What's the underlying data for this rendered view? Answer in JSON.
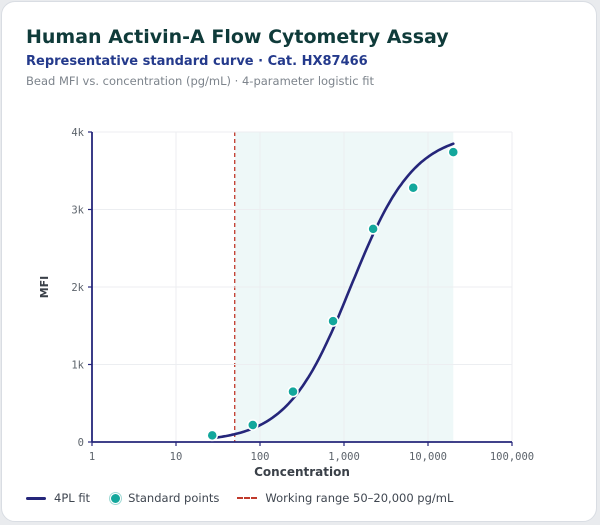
{
  "header": {
    "title": "Human Activin-A Flow Cytometry Assay",
    "subtitle": "Representative standard curve · Cat. HX87466",
    "description": "Bead MFI vs. concentration (pg/mL) · 4-parameter logistic fit"
  },
  "colors": {
    "curve": "#25267a",
    "points": "#13a79c",
    "working_range_line": "#c0392b",
    "working_range_fill": "#eef8f8",
    "axis": "#25267a",
    "grid": "#eceef1"
  },
  "chart_data": {
    "type": "scatter",
    "title": "Human Activin-A Flow Cytometry Assay",
    "subtitle": "Representative standard curve · Cat. HX87466",
    "xlabel": "Concentration",
    "ylabel": "MFI",
    "x_scale": "log",
    "xlim": [
      1,
      100000
    ],
    "ylim": [
      0,
      4000
    ],
    "x_ticks": [
      1,
      10,
      100,
      1000,
      10000,
      100000
    ],
    "x_tick_labels": [
      "1",
      "10",
      "100",
      "1,000",
      "10,000",
      "100,000"
    ],
    "y_ticks": [
      0,
      1000,
      2000,
      3000,
      4000
    ],
    "y_tick_labels": [
      "0",
      "1k",
      "2k",
      "3k",
      "4k"
    ],
    "grid": true,
    "legend_position": "bottom-left",
    "working_range": [
      50,
      20000
    ],
    "series": [
      {
        "name": "4PL fit",
        "kind": "line",
        "fit": {
          "model": "4PL",
          "bottom": 0,
          "top": 4000,
          "ec50": 1200,
          "hill": 1.15
        },
        "x_range": [
          27,
          20000
        ]
      },
      {
        "name": "Standard points",
        "kind": "scatter",
        "points": [
          {
            "x": 27,
            "y": 85
          },
          {
            "x": 82,
            "y": 220
          },
          {
            "x": 247,
            "y": 650
          },
          {
            "x": 741,
            "y": 1560
          },
          {
            "x": 2222,
            "y": 2750
          },
          {
            "x": 6667,
            "y": 3280
          },
          {
            "x": 20000,
            "y": 3740
          }
        ]
      }
    ]
  },
  "legend": {
    "items": [
      {
        "label": "4PL fit"
      },
      {
        "label": "Standard points"
      },
      {
        "label": "Working range 50–20,000 pg/mL"
      }
    ]
  }
}
